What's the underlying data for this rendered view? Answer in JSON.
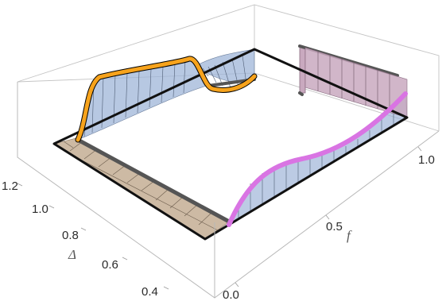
{
  "chart_data": {
    "type": "surface3d",
    "title": "",
    "xlabel": "f",
    "ylabel": "Δ",
    "zlabel": "",
    "xlim": [
      0.0,
      1.0
    ],
    "ylim": [
      0.35,
      1.25
    ],
    "x_ticks": [
      "0.0",
      "0.5",
      "1.0"
    ],
    "y_ticks": [
      "0.4",
      "0.6",
      "0.8",
      "1.0",
      "1.2"
    ],
    "colors": {
      "orange_curve": "#f7a31c",
      "magenta_curve": "#d974e3",
      "blue_sheet": "#9fb5d8",
      "tan_sheet": "#c8b29a",
      "mauve_sheet": "#c9a9bf",
      "dark_edge": "#555555",
      "box": "#b8b8b8"
    }
  }
}
